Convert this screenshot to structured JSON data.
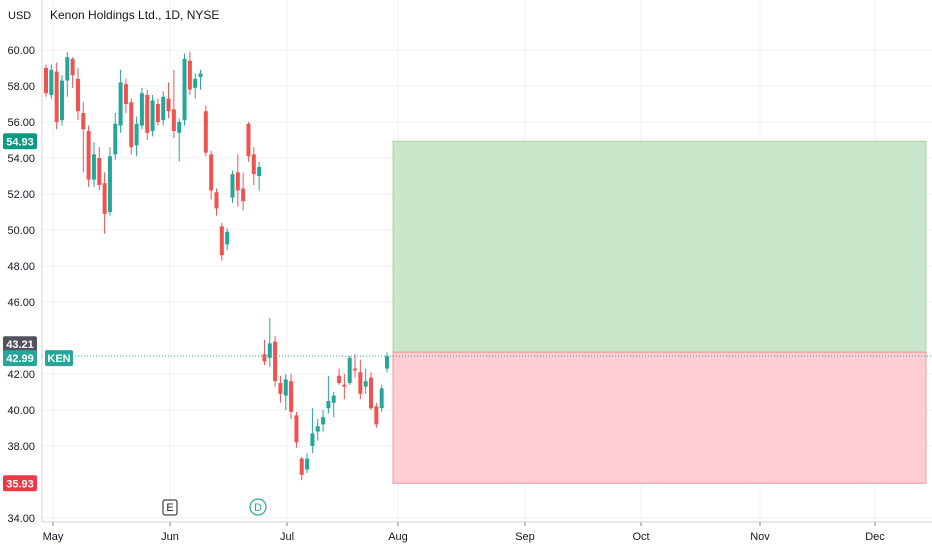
{
  "header": {
    "currency": "USD",
    "title": "Kenon Holdings Ltd., 1D, NYSE"
  },
  "colors": {
    "up": "#26a69a",
    "down": "#ef5350",
    "profit_zone": "#c8e6c9",
    "loss_zone": "#ffcdd2",
    "grid": "#eef0f3"
  },
  "events": [
    {
      "label": "E",
      "date_label": "Jun 1"
    },
    {
      "label": "D",
      "date_label": "Jun 23"
    }
  ],
  "chart_data": {
    "type": "candlestick",
    "title": "Kenon Holdings Ltd., 1D, NYSE",
    "ylabel": "USD",
    "ylim": [
      33.6,
      61.8
    ],
    "grid": true,
    "y_ticks": [
      "60.00",
      "58.00",
      "56.00",
      "54.00",
      "52.00",
      "50.00",
      "48.00",
      "46.00",
      "42.00",
      "40.00",
      "38.00",
      "34.00"
    ],
    "x_ticks": [
      "May",
      "Jun",
      "Jul",
      "Aug",
      "Sep",
      "Oct",
      "Nov",
      "Dec"
    ],
    "price_tags": [
      {
        "label": "54.93",
        "value": 54.93,
        "kind": "take-profit"
      },
      {
        "label": "43.21",
        "value": 43.21,
        "kind": "entry"
      },
      {
        "label": "42.99",
        "value": 42.99,
        "kind": "last",
        "symbol": "KEN"
      },
      {
        "label": "35.93",
        "value": 35.93,
        "kind": "stop-loss"
      }
    ],
    "position": {
      "entry": 43.21,
      "take_profit": 54.93,
      "stop_loss": 35.93,
      "from": "Aug",
      "to": "Dec"
    },
    "candles": [
      [
        59.0,
        59.2,
        57.4,
        57.6
      ],
      [
        57.5,
        59.2,
        57.3,
        58.9
      ],
      [
        58.8,
        59.3,
        55.6,
        56.0
      ],
      [
        56.1,
        58.6,
        55.8,
        58.3
      ],
      [
        58.3,
        59.9,
        57.4,
        59.6
      ],
      [
        59.5,
        59.6,
        57.9,
        58.6
      ],
      [
        58.4,
        59.0,
        56.1,
        56.6
      ],
      [
        56.5,
        57.1,
        53.2,
        55.6
      ],
      [
        55.5,
        55.8,
        52.4,
        52.8
      ],
      [
        52.8,
        54.9,
        52.4,
        54.2
      ],
      [
        54.0,
        54.6,
        52.2,
        52.5
      ],
      [
        52.6,
        53.2,
        49.8,
        50.9
      ],
      [
        51.0,
        54.6,
        50.8,
        54.1
      ],
      [
        54.2,
        56.5,
        53.9,
        55.9
      ],
      [
        55.8,
        58.9,
        55.4,
        58.2
      ],
      [
        58.1,
        58.4,
        56.5,
        57.0
      ],
      [
        57.1,
        57.3,
        54.2,
        54.6
      ],
      [
        54.7,
        56.3,
        54.1,
        55.9
      ],
      [
        55.8,
        57.9,
        55.6,
        57.6
      ],
      [
        57.5,
        57.8,
        55.0,
        55.4
      ],
      [
        55.5,
        57.5,
        55.2,
        57.2
      ],
      [
        57.0,
        57.3,
        55.8,
        56.0
      ],
      [
        56.1,
        57.7,
        55.8,
        57.4
      ],
      [
        57.3,
        58.2,
        56.2,
        56.6
      ],
      [
        56.7,
        58.9,
        55.1,
        55.5
      ],
      [
        55.4,
        56.2,
        53.8,
        56.0
      ],
      [
        56.1,
        59.8,
        55.8,
        59.5
      ],
      [
        59.4,
        59.9,
        57.5,
        57.8
      ],
      [
        57.9,
        58.7,
        57.3,
        58.4
      ],
      [
        58.5,
        58.9,
        57.8,
        58.7
      ],
      [
        56.6,
        56.9,
        54.1,
        54.3
      ],
      [
        54.2,
        54.4,
        51.7,
        52.2
      ],
      [
        52.1,
        52.3,
        50.8,
        51.2
      ],
      [
        50.2,
        50.4,
        48.3,
        48.6
      ],
      [
        49.2,
        50.1,
        48.9,
        49.9
      ],
      [
        51.8,
        53.3,
        51.5,
        53.1
      ],
      [
        53.2,
        54.2,
        51.3,
        52.2
      ],
      [
        52.3,
        53.2,
        51.1,
        51.6
      ],
      [
        55.9,
        56.0,
        53.8,
        54.1
      ],
      [
        54.2,
        54.6,
        52.5,
        53.1
      ],
      [
        53.0,
        53.8,
        52.2,
        53.5
      ],
      [
        43.1,
        43.9,
        42.5,
        42.7
      ],
      [
        42.9,
        45.1,
        42.4,
        43.7
      ],
      [
        43.8,
        44.1,
        41.3,
        41.6
      ],
      [
        41.5,
        41.9,
        40.4,
        40.9
      ],
      [
        40.8,
        42.0,
        40.0,
        41.7
      ],
      [
        41.6,
        42.0,
        39.5,
        39.9
      ],
      [
        39.7,
        39.9,
        37.9,
        38.2
      ],
      [
        37.3,
        37.4,
        36.1,
        36.4
      ],
      [
        36.7,
        37.6,
        36.5,
        37.3
      ],
      [
        38.0,
        40.1,
        37.6,
        38.7
      ],
      [
        38.8,
        39.5,
        38.3,
        39.1
      ],
      [
        39.2,
        40.0,
        38.8,
        39.6
      ],
      [
        40.1,
        41.9,
        39.8,
        40.5
      ],
      [
        40.4,
        41.0,
        39.6,
        40.8
      ],
      [
        41.9,
        42.3,
        41.4,
        41.5
      ],
      [
        41.4,
        42.0,
        40.6,
        41.3
      ],
      [
        41.5,
        43.0,
        41.4,
        42.9
      ],
      [
        42.3,
        43.1,
        41.8,
        42.2
      ],
      [
        42.1,
        42.8,
        40.6,
        40.9
      ],
      [
        41.3,
        42.3,
        40.9,
        41.6
      ],
      [
        41.8,
        42.1,
        40.0,
        40.1
      ],
      [
        40.2,
        40.4,
        39.0,
        39.2
      ],
      [
        40.1,
        41.4,
        39.9,
        41.2
      ],
      [
        42.3,
        43.2,
        42.1,
        42.99
      ]
    ]
  }
}
